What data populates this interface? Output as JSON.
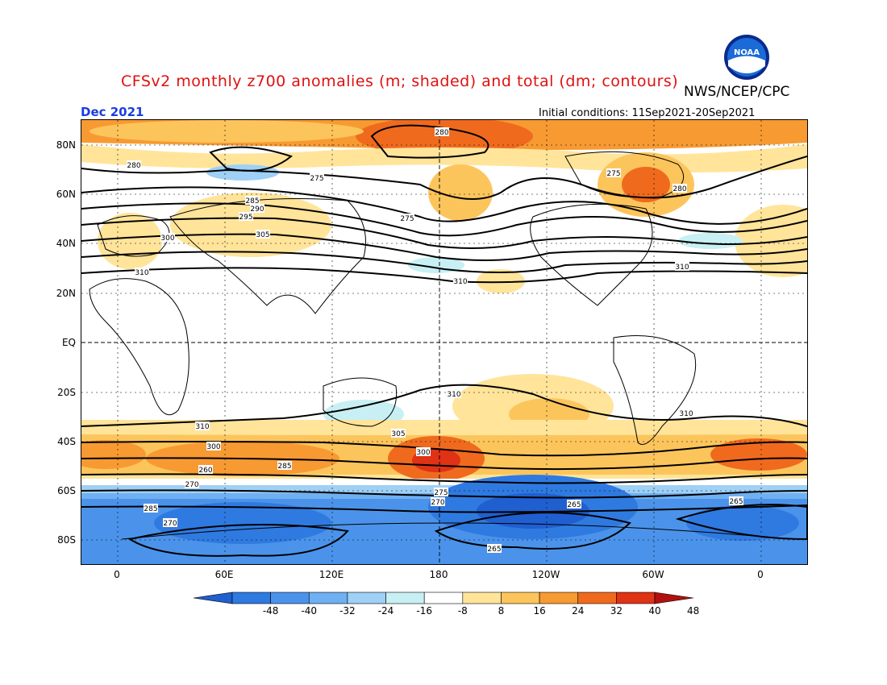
{
  "title": "CFSv2 monthly z700 anomalies (m; shaded) and total (dm; contours)",
  "agency": "NWS/NCEP/CPC",
  "valid_month": "Dec 2021",
  "initial_conditions": "Initial conditions: 11Sep2021-20Sep2021",
  "logo_text": "NOAA",
  "lat_labels": [
    "80N",
    "60N",
    "40N",
    "20N",
    "EQ",
    "20S",
    "40S",
    "60S",
    "80S"
  ],
  "lon_labels": [
    "0",
    "60E",
    "120E",
    "180",
    "120W",
    "60W",
    "0"
  ],
  "colorbar": {
    "ticks": [
      "-48",
      "-40",
      "-32",
      "-24",
      "-16",
      "-8",
      "8",
      "16",
      "24",
      "32",
      "40",
      "48"
    ],
    "colors": [
      "#1f5fd0",
      "#2f7ae0",
      "#4b93ea",
      "#6fb0f2",
      "#9fd0f6",
      "#c8f0f4",
      "#ffffff",
      "#ffe49a",
      "#fcc55c",
      "#f89a32",
      "#f06a1e",
      "#e03214",
      "#b01010"
    ]
  },
  "contour_labels": [
    "280",
    "275",
    "285",
    "290",
    "295",
    "300",
    "305",
    "310",
    "260",
    "270",
    "265"
  ]
}
